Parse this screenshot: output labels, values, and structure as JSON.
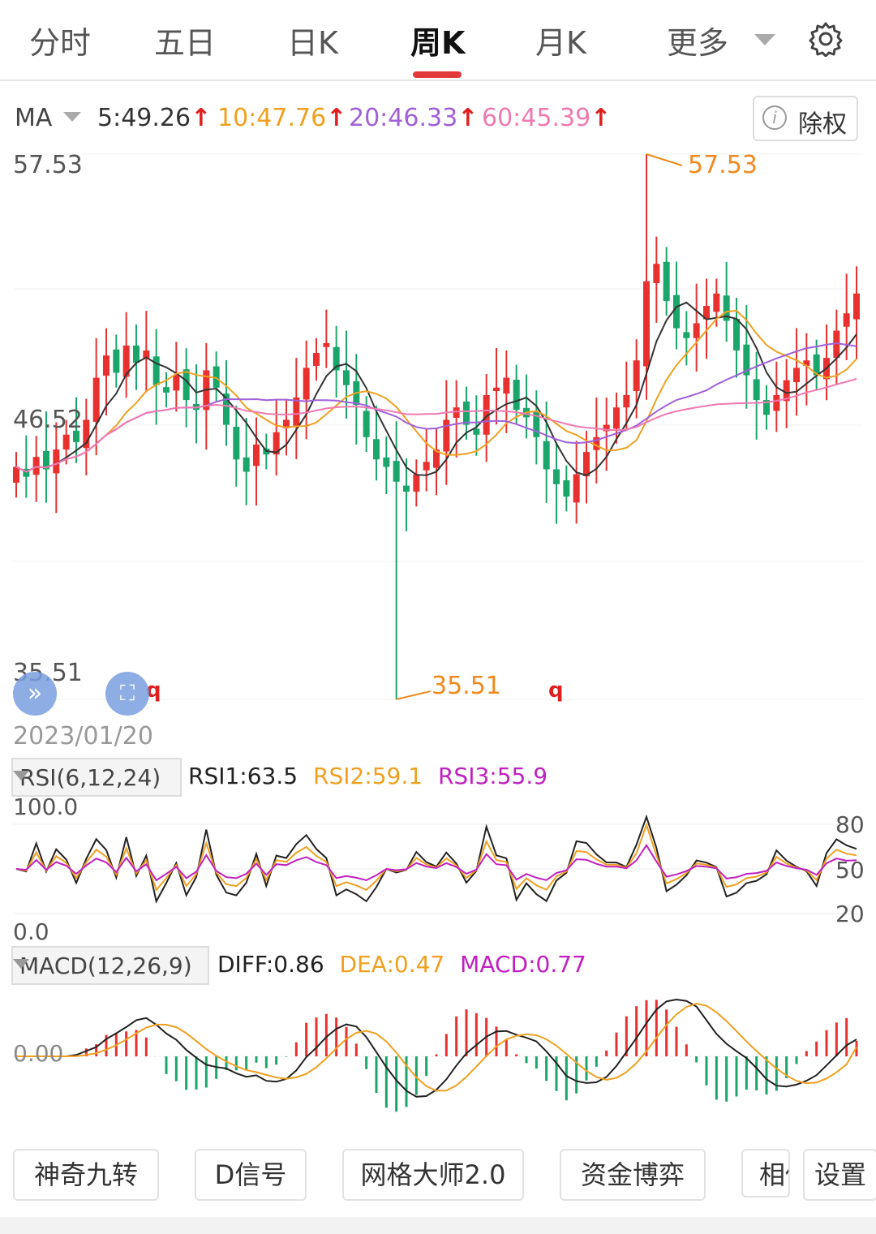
{
  "tabs": [
    {
      "label": "分时"
    },
    {
      "label": "五日"
    },
    {
      "label": "日K"
    },
    {
      "label": "周K"
    },
    {
      "label": "月K"
    },
    {
      "label": "更多"
    }
  ],
  "ma_bar": {
    "label": "MA",
    "items": [
      {
        "text": "5:49.26",
        "color": "#333333"
      },
      {
        "text": "10:47.76",
        "color": "#f0a020"
      },
      {
        "text": "20:46.33",
        "color": "#a060d8"
      },
      {
        "text": "60:45.39",
        "color": "#f07ab0"
      }
    ],
    "arrow": "↑",
    "arrow_color": "#e02020",
    "chuquan_label": "除权"
  },
  "price_axis": {
    "top": "57.53",
    "mid": "46.52",
    "bottom": "35.51"
  },
  "annotations": {
    "high": "57.53",
    "low": "35.51",
    "q_marker": "q"
  },
  "start_date": "2023/01/20",
  "rsi": {
    "label": "RSI(6,12,24)",
    "values": [
      {
        "text": "RSI1:63.5",
        "color": "#222222"
      },
      {
        "text": "RSI2:59.1",
        "color": "#f0a020"
      },
      {
        "text": "RSI3:55.9",
        "color": "#c020c0"
      }
    ],
    "axis_top": "100.0",
    "axis_bottom": "0.0",
    "right_labels": [
      "80",
      "50",
      "20"
    ]
  },
  "macd": {
    "label": "MACD(12,26,9)",
    "values": [
      {
        "text": "DIFF:0.86",
        "color": "#222222"
      },
      {
        "text": "DEA:0.47",
        "color": "#f0a020"
      },
      {
        "text": "MACD:0.77",
        "color": "#c020c0"
      }
    ],
    "zero_label": "0.00"
  },
  "buttons": [
    {
      "label": "神奇九转"
    },
    {
      "label": "D信号"
    },
    {
      "label": "网格大师2.0"
    },
    {
      "label": "资金博弈"
    },
    {
      "label": "相似K线"
    },
    {
      "label": "设置"
    }
  ],
  "colors": {
    "up": "#e8312f",
    "down": "#1aa56b",
    "accent": "#e23a3a"
  },
  "chart_data": {
    "type": "candlestick",
    "title": "",
    "ylim": [
      35.51,
      57.53
    ],
    "high": 57.53,
    "low": 35.51,
    "ma_latest": {
      "MA5": 49.26,
      "MA10": 47.76,
      "MA20": 46.33,
      "MA60": 45.39
    },
    "rsi_latest": {
      "RSI1": 63.5,
      "RSI2": 59.1,
      "RSI3": 55.9
    },
    "macd_latest": {
      "DIFF": 0.86,
      "DEA": 0.47,
      "MACD": 0.77
    },
    "candles_close": [
      44.9,
      44.5,
      45.3,
      44.8,
      45.6,
      46.2,
      45.9,
      46.8,
      48.5,
      49.4,
      48.7,
      49.8,
      49.1,
      49.6,
      48.2,
      47.9,
      48.6,
      47.6,
      47.2,
      48.8,
      48.1,
      46.6,
      45.2,
      44.7,
      45.8,
      45.4,
      46.3,
      46.8,
      47.7,
      48.9,
      49.5,
      49.9,
      48.8,
      48.2,
      47.4,
      46.1,
      45.2,
      44.9,
      44.3,
      43.9,
      44.6,
      45.1,
      45.6,
      46.8,
      47.3,
      46.6,
      46.2,
      47.8,
      48.1,
      48.5,
      47.2,
      46.9,
      46.1,
      44.8,
      44.2,
      43.7,
      44.6,
      45.5,
      46.1,
      46.6,
      47.3,
      47.8,
      49.2,
      52.4,
      53.1,
      51.6,
      50.5,
      50.1,
      50.7,
      51.4,
      51.9,
      50.8,
      49.6,
      48.6,
      47.6,
      47.0,
      47.8,
      48.4,
      48.9,
      49.2,
      48.6,
      49.3,
      50.4,
      51.1,
      51.9
    ]
  }
}
